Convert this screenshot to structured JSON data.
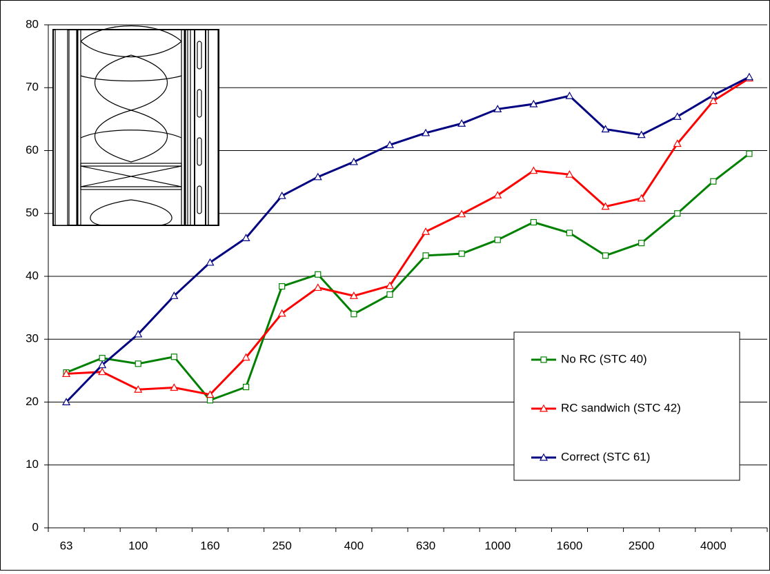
{
  "chart_data": {
    "type": "line",
    "categories": [
      "63",
      null,
      "100",
      null,
      "160",
      null,
      "250",
      null,
      "400",
      null,
      "630",
      null,
      "1000",
      null,
      "1600",
      null,
      "2500",
      null,
      "4000",
      null
    ],
    "series": [
      {
        "name": "No RC (STC 40)",
        "color": "#008000",
        "marker": "square",
        "values": [
          24.7,
          27.0,
          26.1,
          27.2,
          20.3,
          22.4,
          38.4,
          40.3,
          34.0,
          37.1,
          43.3,
          43.6,
          45.8,
          48.6,
          46.9,
          43.3,
          45.3,
          50.0,
          55.1,
          59.5
        ]
      },
      {
        "name": "RC sandwich (STC 42)",
        "color": "#ff0000",
        "marker": "triangle",
        "values": [
          24.5,
          24.8,
          22.0,
          22.3,
          21.2,
          27.1,
          34.1,
          38.2,
          36.9,
          38.5,
          47.1,
          49.9,
          52.9,
          56.8,
          56.2,
          51.1,
          52.4,
          61.1,
          67.9,
          71.5
        ]
      },
      {
        "name": "Correct (STC 61)",
        "color": "#000080",
        "marker": "triangle",
        "values": [
          20.0,
          25.9,
          30.8,
          36.9,
          42.2,
          46.1,
          52.8,
          55.8,
          58.2,
          60.9,
          62.8,
          64.3,
          66.6,
          67.4,
          68.7,
          63.4,
          62.5,
          65.4,
          68.8,
          71.7
        ]
      }
    ],
    "ylim": [
      0,
      80
    ],
    "yticks": [
      0,
      10,
      20,
      30,
      40,
      50,
      60,
      70,
      80
    ],
    "grid": true
  }
}
